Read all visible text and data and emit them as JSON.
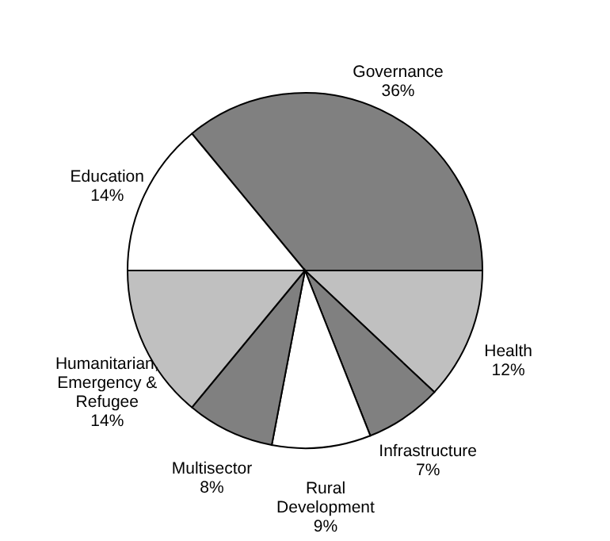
{
  "chart_data": {
    "type": "pie",
    "categories": [
      "Governance",
      "Health",
      "Infrastructure",
      "Rural Development",
      "Multisector",
      "Humanitarian, Emergency & Refugee",
      "Education"
    ],
    "values": [
      36,
      12,
      7,
      9,
      8,
      14,
      14
    ],
    "value_labels": [
      "36%",
      "12%",
      "7%",
      "9%",
      "8%",
      "14%",
      "14%"
    ],
    "colors": [
      "#808080",
      "#c0c0c0",
      "#808080",
      "#ffffff",
      "#808080",
      "#c0c0c0",
      "#ffffff"
    ],
    "legend": false
  }
}
